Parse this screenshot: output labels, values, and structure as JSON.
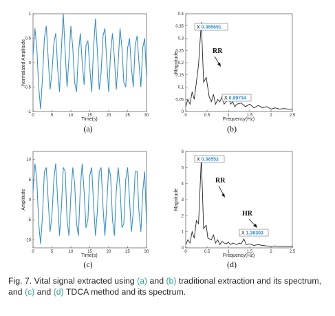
{
  "figure": {
    "caption": {
      "prefix": "Fig. 7.",
      "t1": " Vital signal extracted using ",
      "ref_a": "(a)",
      "t2": " and ",
      "ref_b": "(b)",
      "t3": " traditional extraction and its spectrum, and ",
      "ref_c": "(c)",
      "t4": " and ",
      "ref_d": "(d)",
      "t5": " TDCA method and its spectrum."
    }
  },
  "chart_data": [
    {
      "id": "a",
      "type": "line",
      "panel_label": "(a)",
      "xlabel": "Time(s)",
      "ylabel": "Normalized Amplitude",
      "xlim": [
        0,
        30
      ],
      "ylim": [
        -1,
        1
      ],
      "xticks": [
        "0",
        "5",
        "10",
        "15",
        "20",
        "25",
        "30"
      ],
      "yticks": [
        "1",
        "0.5",
        "0",
        "-0.5",
        "-1"
      ],
      "color": "#3a8fc4",
      "series": [
        {
          "x": [
            0,
            0.5,
            1,
            1.5,
            2,
            2.5,
            3,
            3.5,
            4,
            4.5,
            5,
            5.5,
            6,
            6.5,
            7,
            7.5,
            8,
            8.5,
            9,
            9.5,
            10,
            10.5,
            11,
            11.5,
            12,
            12.5,
            13,
            13.5,
            14,
            14.5,
            15,
            15.5,
            16,
            16.5,
            17,
            17.5,
            18,
            18.5,
            19,
            19.5,
            20,
            20.5,
            21,
            21.5,
            22,
            22.5,
            23,
            23.5,
            24,
            24.5,
            25,
            25.5,
            26,
            26.5,
            27,
            27.5,
            28,
            28.5,
            29,
            29.5,
            30
          ],
          "values": [
            0.15,
            0.7,
            0.3,
            -0.5,
            -0.95,
            -0.3,
            0.5,
            0.75,
            0.1,
            -0.55,
            -0.2,
            0.4,
            0.6,
            -0.1,
            -0.6,
            0.3,
            1.0,
            0.2,
            -0.5,
            0.1,
            0.75,
            0.3,
            -0.4,
            -0.6,
            0.2,
            0.6,
            0.0,
            -0.45,
            0.35,
            0.45,
            -0.1,
            -0.6,
            0.3,
            0.9,
            0.25,
            -0.55,
            -0.2,
            0.55,
            0.7,
            0.0,
            -0.6,
            0.2,
            0.6,
            0.1,
            -0.55,
            0.0,
            0.7,
            0.3,
            -0.4,
            -0.5,
            0.3,
            0.5,
            -0.1,
            -0.5,
            0.35,
            0.55,
            0.0,
            -0.5,
            0.3,
            0.5,
            -0.3
          ]
        }
      ]
    },
    {
      "id": "b",
      "type": "line",
      "panel_label": "(b)",
      "xlabel": "Frequency(Hz)",
      "ylabel": "Magnitude",
      "xlim": [
        0,
        2.5
      ],
      "ylim": [
        0,
        0.4
      ],
      "xticks": [
        "0",
        "0.5",
        "1",
        "1.5",
        "2",
        "2.5"
      ],
      "yticks": [
        "0.4",
        "0.35",
        "0.3",
        "0.25",
        "0.2",
        "0.15",
        "0.1",
        "0.05",
        "0"
      ],
      "color": "#222222",
      "series": [
        {
          "x": [
            0,
            0.05,
            0.1,
            0.15,
            0.2,
            0.25,
            0.3,
            0.366,
            0.42,
            0.48,
            0.55,
            0.6,
            0.65,
            0.7,
            0.75,
            0.8,
            0.85,
            0.9,
            0.95,
            0.997,
            1.05,
            1.1,
            1.15,
            1.2,
            1.3,
            1.4,
            1.5,
            1.6,
            1.7,
            1.8,
            1.9,
            2.0,
            2.1,
            2.2,
            2.3,
            2.4,
            2.5
          ],
          "values": [
            0.02,
            0.05,
            0.03,
            0.08,
            0.05,
            0.12,
            0.19,
            0.366,
            0.12,
            0.14,
            0.06,
            0.04,
            0.07,
            0.03,
            0.05,
            0.04,
            0.06,
            0.03,
            0.04,
            0.07,
            0.03,
            0.04,
            0.02,
            0.03,
            0.035,
            0.02,
            0.03,
            0.015,
            0.025,
            0.015,
            0.02,
            0.01,
            0.015,
            0.01,
            0.012,
            0.01,
            0.01
          ]
        }
      ],
      "datatips": [
        {
          "label": "X",
          "value": "0.365691"
        },
        {
          "label": "X",
          "value": "0.99734"
        }
      ],
      "annotations": [
        "RR"
      ]
    },
    {
      "id": "c",
      "type": "line",
      "panel_label": "(c)",
      "xlabel": "Time(s)",
      "ylabel": "Amplitude",
      "xlim": [
        0,
        30
      ],
      "ylim": [
        -12,
        12
      ],
      "xticks": [
        "0",
        "5",
        "10",
        "15",
        "20",
        "25",
        "30"
      ],
      "yticks": [
        "10",
        "5",
        "0",
        "-5",
        "-10"
      ],
      "color": "#3a8fc4",
      "series": [
        {
          "x": [
            0,
            0.5,
            1,
            1.5,
            2,
            2.5,
            3,
            3.5,
            4,
            4.5,
            5,
            5.5,
            6,
            6.5,
            7,
            7.5,
            8,
            8.5,
            9,
            9.5,
            10,
            10.5,
            11,
            11.5,
            12,
            12.5,
            13,
            13.5,
            14,
            14.5,
            15,
            15.5,
            16,
            16.5,
            17,
            17.5,
            18,
            18.5,
            19,
            19.5,
            20,
            20.5,
            21,
            21.5,
            22,
            22.5,
            23,
            23.5,
            24,
            24.5,
            25,
            25.5,
            26,
            26.5,
            27,
            27.5,
            28,
            28.5,
            29,
            29.5,
            30
          ],
          "values": [
            2,
            9,
            5,
            -6,
            -11,
            -4,
            7,
            8,
            0,
            -8,
            -4,
            5,
            9,
            0,
            -9,
            -2,
            8,
            7,
            -5,
            -9,
            1,
            8,
            4,
            -6,
            -9,
            3,
            9,
            2,
            -7,
            -5,
            6,
            8,
            -1,
            -9,
            -3,
            7,
            8,
            -2,
            -9,
            -1,
            8,
            6,
            -5,
            -9,
            2,
            8,
            3,
            -7,
            -6,
            5,
            8,
            0,
            -8,
            -3,
            7,
            7,
            -3,
            -8,
            2,
            7,
            -6
          ]
        }
      ]
    },
    {
      "id": "d",
      "type": "line",
      "panel_label": "(d)",
      "xlabel": "Frequency(Hz)",
      "ylabel": "Magnitude",
      "xlim": [
        0,
        2.5
      ],
      "ylim": [
        0,
        6
      ],
      "xticks": [
        "0",
        "0.5",
        "1",
        "1.5",
        "2",
        "2.5"
      ],
      "yticks": [
        "6",
        "5",
        "4",
        "3",
        "2",
        "1",
        "0"
      ],
      "color": "#222222",
      "series": [
        {
          "x": [
            0,
            0.05,
            0.1,
            0.15,
            0.2,
            0.25,
            0.3,
            0.366,
            0.42,
            0.48,
            0.52,
            0.6,
            0.65,
            0.7,
            0.75,
            0.8,
            0.85,
            0.9,
            0.95,
            1.0,
            1.05,
            1.1,
            1.15,
            1.2,
            1.25,
            1.3,
            1.363,
            1.42,
            1.5,
            1.6,
            1.7,
            1.8,
            1.9,
            2.0,
            2.1,
            2.2,
            2.3,
            2.4,
            2.5
          ],
          "values": [
            0.2,
            0.5,
            0.3,
            1.0,
            0.6,
            1.7,
            1.5,
            5.6,
            1.2,
            1.4,
            0.6,
            0.5,
            0.8,
            0.3,
            0.5,
            0.2,
            0.4,
            0.3,
            0.25,
            0.35,
            0.2,
            0.3,
            0.25,
            0.2,
            0.3,
            0.25,
            0.55,
            0.2,
            0.25,
            0.15,
            0.2,
            0.15,
            0.12,
            0.1,
            0.12,
            0.08,
            0.1,
            0.08,
            0.07
          ]
        }
      ],
      "datatips": [
        {
          "label": "X",
          "value": "0.36552"
        },
        {
          "label": "X",
          "value": "1.36303"
        }
      ],
      "annotations": [
        "RR",
        "HR"
      ]
    }
  ]
}
